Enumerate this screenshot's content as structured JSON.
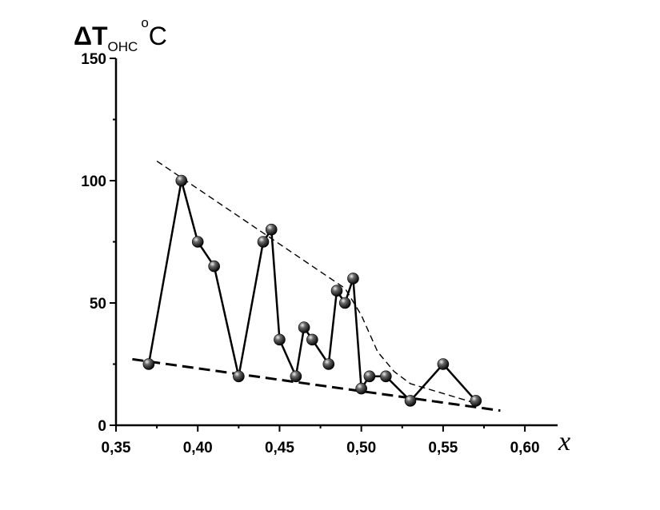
{
  "chart_data": {
    "type": "scatter",
    "title": "",
    "ylabel": {
      "main": "ΔT",
      "subscript": "ОНС",
      "superscript": "o",
      "unit": "C"
    },
    "xlabel": "x",
    "xlim": [
      0.35,
      0.62
    ],
    "ylim": [
      0,
      150
    ],
    "x_ticks": [
      0.35,
      0.4,
      0.45,
      0.5,
      0.55,
      0.6
    ],
    "x_tick_labels": [
      "0,35",
      "0,40",
      "0,45",
      "0,50",
      "0,55",
      "0,60"
    ],
    "y_ticks": [
      0,
      50,
      100,
      150
    ],
    "y_tick_labels": [
      "0",
      "50",
      "100",
      "150"
    ],
    "grid": false,
    "series": [
      {
        "style": "solid line with spherical markers",
        "x": [
          0.37,
          0.39,
          0.4,
          0.41,
          0.425,
          0.44,
          0.445,
          0.45,
          0.46,
          0.465,
          0.47,
          0.48,
          0.485,
          0.49,
          0.495,
          0.5,
          0.505,
          0.515,
          0.53,
          0.55,
          0.57
        ],
        "y": [
          25,
          100,
          75,
          65,
          20,
          75,
          80,
          35,
          20,
          40,
          35,
          25,
          55,
          50,
          60,
          15,
          20,
          20,
          10,
          25,
          10
        ]
      }
    ],
    "guide_lines": [
      {
        "style": "thin dashed upper envelope",
        "x": [
          0.375,
          0.49,
          0.5,
          0.51,
          0.52,
          0.53,
          0.55,
          0.57
        ],
        "y": [
          108,
          56,
          45,
          30,
          22,
          17,
          13,
          9
        ]
      },
      {
        "style": "thick dashed lower envelope",
        "x": [
          0.36,
          0.585
        ],
        "y": [
          27,
          6
        ]
      }
    ]
  }
}
